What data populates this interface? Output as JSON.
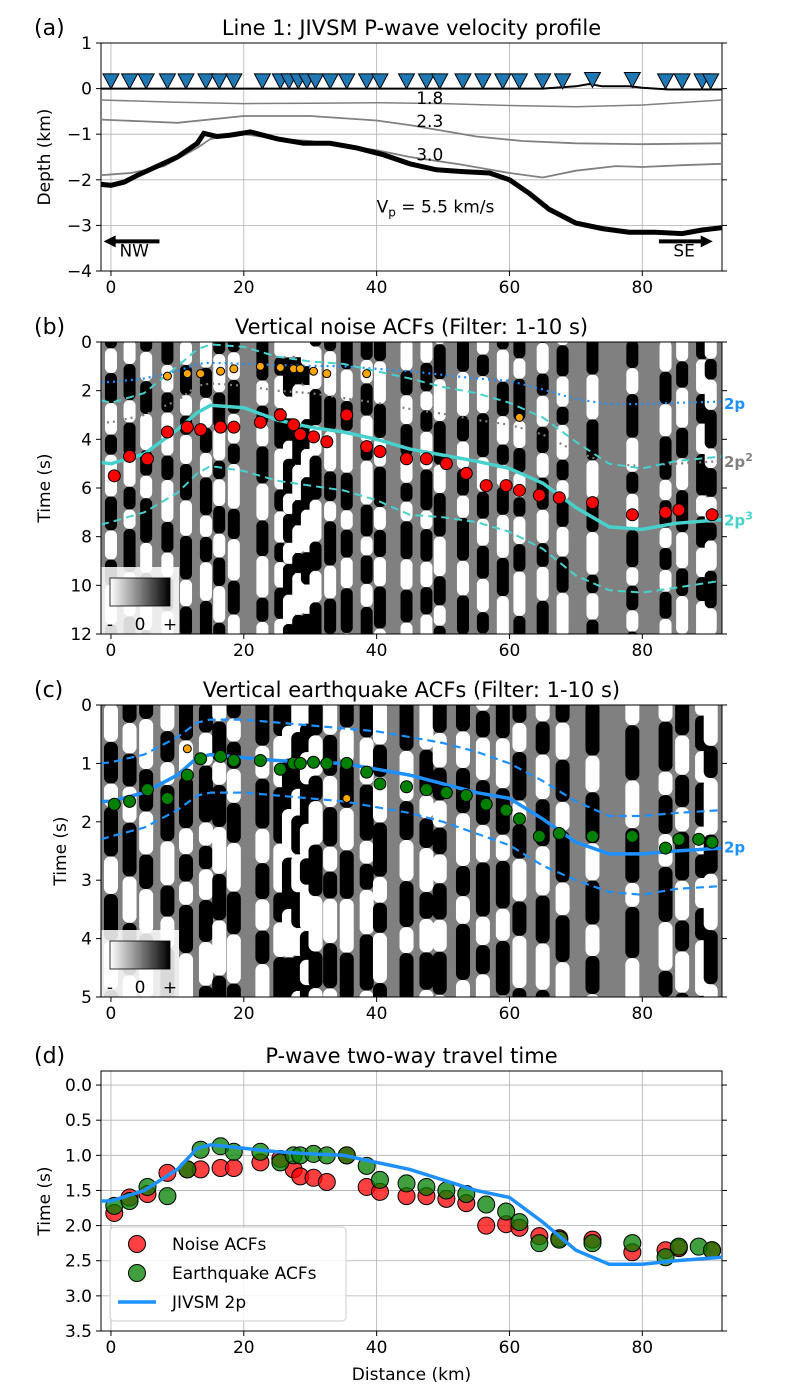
{
  "colors": {
    "background": "#ffffff",
    "blue": "#1e90ff",
    "turquoise": "#48d1cc",
    "gray_line": "#808080",
    "noise_fill": "#ff0000",
    "eq_fill": "#008000",
    "triangle_fill": "#1f77b4",
    "orange": "#ffa500",
    "panel_bg": "#808080"
  },
  "xaxis": {
    "label": "Distance (km)",
    "lim": [
      -1.5,
      92
    ],
    "ticks": [
      0,
      20,
      40,
      60,
      80
    ],
    "tick_labels": [
      "0",
      "20",
      "40",
      "60",
      "80"
    ]
  },
  "panel_a": {
    "label": "(a)",
    "title": "Line 1: JIVSM P-wave velocity profile",
    "ylabel": "Depth (km)",
    "ylim": [
      -4,
      1
    ],
    "yticks": [
      1,
      0,
      -1,
      -2,
      -3,
      -4
    ],
    "ytick_labels": [
      "1",
      "0",
      "−1",
      "−2",
      "−3",
      "−4"
    ],
    "layer_labels": [
      "1.8",
      "2.3",
      "3.0"
    ],
    "basement_label": "V",
    "basement_sub": "p",
    "basement_rest": " = 5.5 km/s",
    "dir_left": "NW",
    "dir_right": "SE",
    "stations_x": [
      0,
      2.8,
      5.3,
      8.5,
      11.3,
      14.3,
      16.3,
      18.5,
      22.8,
      25.5,
      26.8,
      28.2,
      29.5,
      30.8,
      33,
      35.5,
      38.5,
      40.5,
      44.5,
      47.5,
      49.5,
      53,
      56,
      59,
      61.5,
      65,
      68,
      72.5,
      78.5,
      83.5,
      86,
      89,
      90.3
    ],
    "stations_elev": [
      0.17,
      0.17,
      0.17,
      0.17,
      0.17,
      0.17,
      0.17,
      0.17,
      0.17,
      0.17,
      0.17,
      0.17,
      0.17,
      0.17,
      0.17,
      0.17,
      0.17,
      0.17,
      0.17,
      0.17,
      0.17,
      0.17,
      0.17,
      0.17,
      0.17,
      0.17,
      0.17,
      0.2,
      0.2,
      0.17,
      0.17,
      0.17,
      0.17
    ],
    "surface": {
      "x": [
        -1.5,
        10,
        30,
        50,
        65,
        70,
        72,
        74,
        78,
        80,
        84,
        92
      ],
      "y": [
        0,
        0,
        0,
        0,
        0,
        0.05,
        0.1,
        0.05,
        0.05,
        0.02,
        -0.02,
        -0.02
      ]
    },
    "iface_1_8": {
      "x": [
        -1.5,
        10,
        20,
        30,
        40,
        50,
        60,
        70,
        80,
        92
      ],
      "y": [
        -0.25,
        -0.3,
        -0.33,
        -0.32,
        -0.31,
        -0.33,
        -0.37,
        -0.4,
        -0.36,
        -0.25
      ]
    },
    "iface_2_3": {
      "x": [
        -1.5,
        5,
        10,
        20,
        30,
        40,
        45,
        55,
        62,
        70,
        80,
        92
      ],
      "y": [
        -0.68,
        -0.72,
        -0.75,
        -0.6,
        -0.6,
        -0.7,
        -0.8,
        -1.05,
        -1.15,
        -1.2,
        -1.22,
        -1.2
      ]
    },
    "iface_3_0": {
      "x": [
        -1.5,
        3,
        8,
        13,
        15,
        20,
        25,
        30,
        35,
        40,
        45,
        52,
        56,
        60,
        65,
        70,
        76,
        80,
        86,
        92
      ],
      "y": [
        -1.9,
        -1.85,
        -1.7,
        -1.3,
        -1.1,
        -1.0,
        -1.1,
        -1.15,
        -1.25,
        -1.35,
        -1.5,
        -1.65,
        -1.75,
        -1.85,
        -1.95,
        -1.8,
        -1.7,
        -1.72,
        -1.68,
        -1.65
      ]
    },
    "iface_5_5": {
      "x": [
        -1.5,
        0,
        2,
        4,
        7,
        10,
        13,
        14,
        16,
        18,
        21,
        25,
        29,
        33,
        37,
        41,
        45,
        49,
        53,
        57,
        60,
        63,
        66,
        70,
        74,
        78,
        82,
        86,
        89,
        92
      ],
      "y": [
        -2.1,
        -2.12,
        -2.05,
        -1.9,
        -1.7,
        -1.5,
        -1.2,
        -0.98,
        -1.05,
        -1.02,
        -0.95,
        -1.1,
        -1.2,
        -1.2,
        -1.3,
        -1.45,
        -1.65,
        -1.78,
        -1.82,
        -1.85,
        -2.0,
        -2.3,
        -2.65,
        -2.95,
        -3.07,
        -3.15,
        -3.15,
        -3.18,
        -3.1,
        -3.05
      ]
    }
  },
  "panel_b": {
    "label": "(b)",
    "title": "Vertical noise ACFs (Filter: 1-10 s)",
    "ylabel": "Time (s)",
    "ylim": [
      0,
      12
    ],
    "yticks": [
      0,
      2,
      4,
      6,
      8,
      10,
      12
    ],
    "ytick_labels": [
      "0",
      "2",
      "4",
      "6",
      "8",
      "10",
      "12"
    ],
    "colorbar_ticks": [
      "-",
      "0",
      "+"
    ],
    "curve_labels": [
      "2p",
      "2p",
      "2",
      "2p",
      "3"
    ],
    "two_p": {
      "x": [
        -1.5,
        0,
        5,
        10,
        13,
        15,
        20,
        25,
        30,
        35,
        40,
        45,
        50,
        55,
        60,
        65,
        70,
        75,
        80,
        85,
        92
      ],
      "y": [
        1.65,
        1.65,
        1.5,
        1.2,
        0.9,
        0.85,
        0.9,
        0.95,
        0.98,
        1.0,
        1.1,
        1.2,
        1.35,
        1.5,
        1.6,
        1.95,
        2.35,
        2.55,
        2.55,
        2.5,
        2.45
      ]
    },
    "two_p_sq": {
      "x": [
        -1.5,
        0,
        5,
        10,
        13,
        15,
        20,
        25,
        30,
        35,
        40,
        45,
        50,
        55,
        60,
        65,
        70,
        75,
        80,
        85,
        92
      ],
      "y": [
        3.3,
        3.3,
        3.0,
        2.4,
        1.8,
        1.7,
        1.8,
        2.0,
        2.1,
        2.3,
        2.5,
        2.75,
        2.95,
        3.2,
        3.4,
        3.8,
        4.5,
        5.0,
        5.1,
        5.0,
        4.9
      ]
    },
    "two_p_cu": {
      "x": [
        -1.5,
        0,
        5,
        10,
        13,
        15,
        20,
        25,
        30,
        35,
        40,
        45,
        50,
        55,
        60,
        65,
        70,
        75,
        80,
        85,
        92
      ],
      "y": [
        4.95,
        5.0,
        4.6,
        3.6,
        2.9,
        2.6,
        2.7,
        3.2,
        3.5,
        3.7,
        4.0,
        4.4,
        4.65,
        4.9,
        5.2,
        5.8,
        6.8,
        7.6,
        7.7,
        7.45,
        7.3
      ]
    },
    "two_p_cu_upper": {
      "x": [
        -1.5,
        0,
        5,
        10,
        13,
        15,
        20,
        25,
        30,
        35,
        40,
        45,
        50,
        55,
        60,
        65,
        70,
        75,
        80,
        85,
        92
      ],
      "y": [
        2.4,
        2.5,
        2.1,
        1.0,
        0.3,
        0.1,
        0.2,
        0.6,
        0.8,
        0.9,
        1.2,
        1.5,
        1.85,
        2.1,
        2.5,
        3.1,
        4.1,
        5.0,
        5.2,
        4.9,
        4.7
      ]
    },
    "two_p_cu_lower": {
      "x": [
        -1.5,
        0,
        5,
        10,
        13,
        15,
        20,
        25,
        30,
        35,
        40,
        45,
        50,
        55,
        60,
        65,
        70,
        75,
        80,
        85,
        92
      ],
      "y": [
        7.5,
        7.4,
        7.0,
        6.2,
        5.4,
        5.1,
        5.3,
        5.7,
        5.9,
        6.1,
        6.5,
        7.1,
        7.2,
        7.4,
        7.8,
        8.5,
        9.6,
        10.2,
        10.3,
        10.1,
        9.8
      ]
    },
    "red_x": [
      0.5,
      2.8,
      5.5,
      8.5,
      11.5,
      13.5,
      16.5,
      18.5,
      22.5,
      25.5,
      27.5,
      28.5,
      30.5,
      32.5,
      35.5,
      38.5,
      40.5,
      44.5,
      47.5,
      50.5,
      53.5,
      56.5,
      59.5,
      61.5,
      64.5,
      67.5,
      72.5,
      78.5,
      83.5,
      85.5,
      90.5
    ],
    "red_y": [
      5.5,
      4.7,
      4.8,
      3.7,
      3.5,
      3.6,
      3.5,
      3.5,
      3.3,
      3.0,
      3.4,
      3.8,
      3.9,
      4.1,
      3.0,
      4.3,
      4.5,
      4.8,
      4.8,
      5.0,
      5.4,
      5.9,
      5.9,
      6.1,
      6.3,
      6.4,
      6.6,
      7.1,
      7.0,
      6.9,
      7.1
    ],
    "orange_x": [
      8.5,
      11.5,
      13.5,
      16.5,
      18.5,
      22.5,
      25.5,
      27.5,
      28.5,
      30.5,
      32.5,
      38.5,
      61.5
    ],
    "orange_y": [
      1.4,
      1.3,
      1.3,
      1.2,
      1.1,
      1.0,
      1.05,
      1.1,
      1.1,
      1.2,
      1.3,
      1.3,
      3.1
    ]
  },
  "panel_c": {
    "label": "(c)",
    "title": "Vertical earthquake ACFs (Filter: 1-10 s)",
    "ylabel": "Time (s)",
    "ylim": [
      0,
      5
    ],
    "yticks": [
      0,
      1,
      2,
      3,
      4,
      5
    ],
    "ytick_labels": [
      "0",
      "1",
      "2",
      "3",
      "4",
      "5"
    ],
    "colorbar_ticks": [
      "-",
      "0",
      "+"
    ],
    "curve_label": "2p",
    "upper": {
      "x": [
        -1.5,
        0,
        5,
        10,
        13,
        15,
        20,
        25,
        30,
        35,
        40,
        45,
        50,
        55,
        60,
        65,
        70,
        75,
        80,
        85,
        92
      ],
      "y": [
        1.0,
        0.98,
        0.85,
        0.55,
        0.3,
        0.25,
        0.25,
        0.3,
        0.35,
        0.4,
        0.45,
        0.55,
        0.65,
        0.8,
        1.0,
        1.3,
        1.65,
        1.9,
        1.9,
        1.85,
        1.8
      ]
    },
    "lower": {
      "x": [
        -1.5,
        0,
        5,
        10,
        13,
        15,
        20,
        25,
        30,
        35,
        40,
        45,
        50,
        55,
        60,
        65,
        70,
        75,
        80,
        85,
        92
      ],
      "y": [
        2.3,
        2.25,
        2.1,
        1.8,
        1.55,
        1.5,
        1.5,
        1.55,
        1.6,
        1.65,
        1.75,
        1.85,
        2.0,
        2.2,
        2.4,
        2.75,
        3.0,
        3.2,
        3.25,
        3.15,
        3.1
      ]
    },
    "green_x": [
      0.5,
      2.8,
      5.5,
      8.5,
      11.5,
      13.5,
      16.5,
      18.5,
      22.5,
      25.5,
      27.5,
      28.5,
      30.5,
      32.5,
      35.5,
      38.5,
      40.5,
      44.5,
      47.5,
      50.5,
      53.5,
      56.5,
      59.5,
      61.5,
      64.5,
      67.5,
      72.5,
      78.5,
      83.5,
      85.5,
      88.5,
      90.5
    ],
    "green_y": [
      1.7,
      1.65,
      1.45,
      1.6,
      1.2,
      0.92,
      0.88,
      0.95,
      0.95,
      1.1,
      1.0,
      1.0,
      0.98,
      1.0,
      1.0,
      1.15,
      1.35,
      1.4,
      1.45,
      1.5,
      1.55,
      1.7,
      1.8,
      1.95,
      2.25,
      2.2,
      2.25,
      2.25,
      2.45,
      2.3,
      2.3,
      2.35
    ],
    "orange_x": [
      11.5,
      35.5
    ],
    "orange_y": [
      0.75,
      1.6
    ]
  },
  "panel_d": {
    "label": "(d)",
    "title": "P-wave two-way travel time",
    "ylabel": "Time (s)",
    "ylim": [
      3.5,
      -0.2
    ],
    "yticks": [
      0.0,
      0.5,
      1.0,
      1.5,
      2.0,
      2.5,
      3.0,
      3.5
    ],
    "ytick_labels": [
      "0.0",
      "0.5",
      "1.0",
      "1.5",
      "2.0",
      "2.5",
      "3.0",
      "3.5"
    ],
    "legend": {
      "noise": "Noise ACFs",
      "eq": "Earthquake ACFs",
      "model": "JIVSM 2p"
    },
    "noise_x": [
      0.5,
      2.8,
      5.5,
      8.5,
      11.5,
      13.5,
      16.5,
      18.5,
      22.5,
      25.5,
      27.5,
      28.5,
      30.5,
      32.5,
      35.5,
      38.5,
      40.5,
      44.5,
      47.5,
      50.5,
      53.5,
      56.5,
      59.5,
      61.5,
      64.5,
      67.5,
      72.5,
      78.5,
      83.5,
      85.5,
      90.5
    ],
    "noise_y": [
      1.82,
      1.6,
      1.55,
      1.25,
      1.2,
      1.2,
      1.18,
      1.18,
      1.1,
      1.05,
      1.2,
      1.3,
      1.32,
      1.38,
      1.0,
      1.45,
      1.52,
      1.58,
      1.58,
      1.62,
      1.68,
      2.0,
      1.98,
      2.03,
      2.15,
      2.18,
      2.2,
      2.38,
      2.35,
      2.32,
      2.35
    ],
    "eq_x": [
      0.5,
      2.8,
      5.5,
      8.5,
      11.5,
      13.5,
      16.5,
      18.5,
      22.5,
      25.5,
      27.5,
      28.5,
      30.5,
      32.5,
      35.5,
      38.5,
      40.5,
      44.5,
      47.5,
      50.5,
      53.5,
      56.5,
      59.5,
      61.5,
      64.5,
      67.5,
      72.5,
      78.5,
      83.5,
      85.5,
      88.5,
      90.5
    ],
    "eq_y": [
      1.72,
      1.65,
      1.45,
      1.58,
      1.2,
      0.92,
      0.87,
      0.95,
      0.95,
      1.1,
      1.0,
      1.0,
      0.98,
      1.0,
      1.0,
      1.15,
      1.35,
      1.4,
      1.45,
      1.5,
      1.55,
      1.7,
      1.8,
      1.95,
      2.25,
      2.2,
      2.25,
      2.25,
      2.45,
      2.3,
      2.3,
      2.35
    ]
  }
}
